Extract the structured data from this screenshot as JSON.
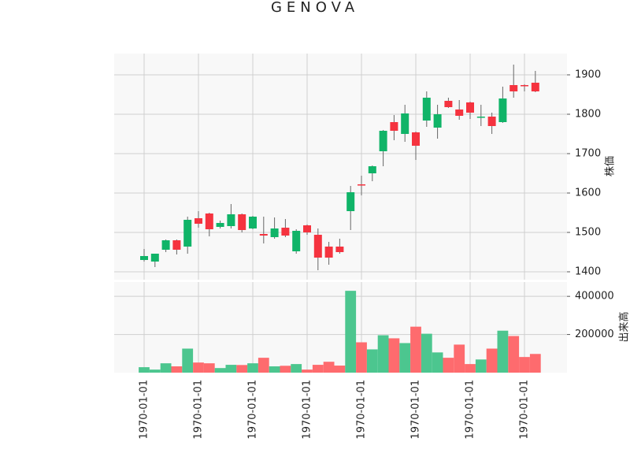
{
  "chart_data": {
    "type": "candlestick",
    "title": "GENOVA",
    "categories": [
      "1970-01-01",
      null,
      null,
      null,
      null,
      "1970-01-01",
      null,
      null,
      null,
      null,
      "1970-01-01",
      null,
      null,
      null,
      null,
      "1970-01-01",
      null,
      null,
      null,
      null,
      "1970-01-01",
      null,
      null,
      null,
      null,
      "1970-01-01",
      null,
      null,
      null,
      null,
      "1970-01-01",
      null,
      null,
      null,
      null,
      "1970-01-01",
      null
    ],
    "open": [
      1430,
      1426,
      1456,
      1480,
      1464,
      1536,
      1548,
      1514,
      1516,
      1546,
      1510,
      1496,
      1488,
      1512,
      1452,
      1518,
      1494,
      1464,
      1464,
      1554,
      1622,
      1650,
      1706,
      1780,
      1750,
      1754,
      1784,
      1766,
      1834,
      1812,
      1830,
      1792,
      1794,
      1780,
      1874,
      1874,
      1880
    ],
    "high": [
      1458,
      1446,
      1482,
      1482,
      1540,
      1554,
      1550,
      1530,
      1572,
      1548,
      1542,
      1540,
      1538,
      1534,
      1508,
      1520,
      1510,
      1476,
      1484,
      1618,
      1644,
      1670,
      1760,
      1798,
      1824,
      1756,
      1858,
      1824,
      1842,
      1836,
      1832,
      1824,
      1804,
      1870,
      1926,
      1876,
      1910
    ],
    "low": [
      1426,
      1412,
      1450,
      1444,
      1446,
      1512,
      1490,
      1510,
      1510,
      1500,
      1508,
      1472,
      1484,
      1488,
      1446,
      1494,
      1404,
      1418,
      1446,
      1506,
      1594,
      1630,
      1668,
      1734,
      1730,
      1684,
      1768,
      1738,
      1816,
      1786,
      1788,
      1770,
      1750,
      1778,
      1842,
      1858,
      1856
    ],
    "close": [
      1440,
      1446,
      1480,
      1456,
      1532,
      1522,
      1508,
      1524,
      1546,
      1506,
      1540,
      1492,
      1510,
      1492,
      1504,
      1500,
      1436,
      1436,
      1450,
      1602,
      1620,
      1668,
      1758,
      1758,
      1802,
      1720,
      1842,
      1800,
      1818,
      1796,
      1804,
      1794,
      1770,
      1840,
      1858,
      1872,
      1858
    ],
    "volume": [
      28600,
      16000,
      49000,
      33000,
      126000,
      53000,
      49000,
      24000,
      41000,
      40000,
      49000,
      78000,
      33000,
      36000,
      45000,
      16000,
      41000,
      57000,
      37000,
      429000,
      159000,
      122000,
      196000,
      180000,
      155000,
      241000,
      204000,
      106000,
      78000,
      147000,
      45000,
      69000,
      126000,
      220000,
      192000,
      82000,
      98000
    ],
    "up_color": "#10b468",
    "down_color": "#f5333f",
    "volume_up_color": "#4cc68f",
    "volume_down_color": "#fe6b6e",
    "ylabel": "株価",
    "ylim": [
      1380,
      1954
    ],
    "yticks": [
      1400,
      1500,
      1600,
      1700,
      1800,
      1900
    ],
    "volume_ylabel": "出来高",
    "volume_ylim": [
      0,
      475000
    ],
    "volume_yticks": [
      200000,
      400000
    ],
    "grid": true
  }
}
